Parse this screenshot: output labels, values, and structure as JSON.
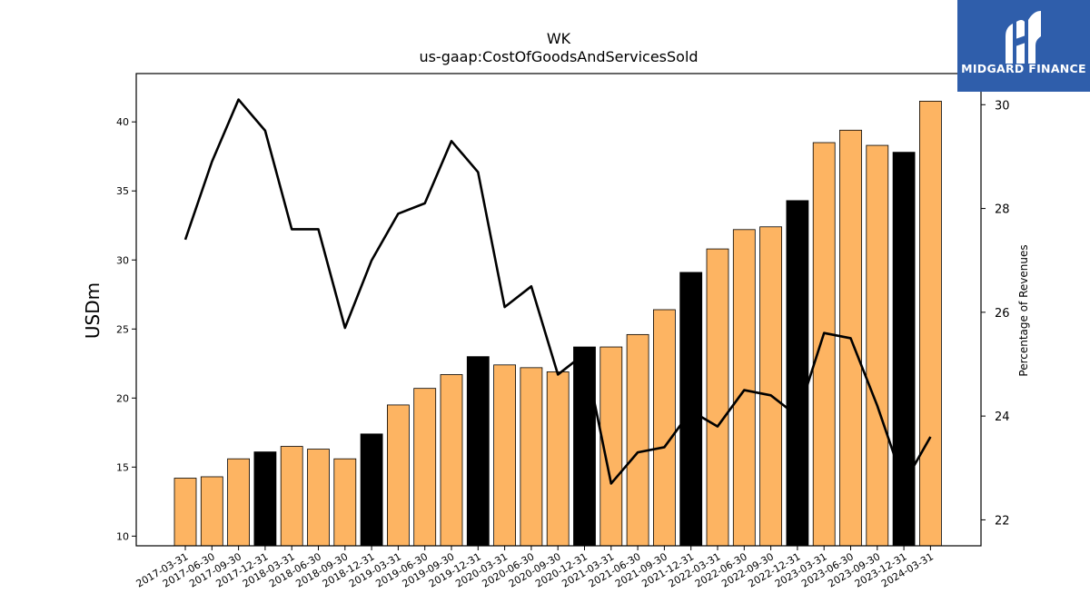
{
  "chart_data": {
    "type": "bar",
    "title": "WK",
    "subtitle": "us-gaap:CostOfGoodsAndServicesSold",
    "ylabel": "USDm",
    "ylabel_right": "Percentage of Revenues",
    "ylim": [
      9.3,
      43.5
    ],
    "ylim_right": [
      21.5,
      30.6
    ],
    "yticks": [
      10,
      15,
      20,
      25,
      30,
      35,
      40
    ],
    "yticks_right": [
      22,
      24,
      26,
      28,
      30
    ],
    "categories": [
      "2017-03-31",
      "2017-06-30",
      "2017-09-30",
      "2017-12-31",
      "2018-03-31",
      "2018-06-30",
      "2018-09-30",
      "2018-12-31",
      "2019-03-31",
      "2019-06-30",
      "2019-09-30",
      "2019-12-31",
      "2020-03-31",
      "2020-06-30",
      "2020-09-30",
      "2020-12-31",
      "2021-03-31",
      "2021-06-30",
      "2021-09-30",
      "2021-12-31",
      "2022-03-31",
      "2022-06-30",
      "2022-09-30",
      "2022-12-31",
      "2023-03-31",
      "2023-06-30",
      "2023-09-30",
      "2023-12-31",
      "2024-03-31"
    ],
    "series": [
      {
        "type": "bar",
        "values": [
          14.2,
          14.3,
          15.6,
          16.1,
          16.5,
          16.3,
          15.6,
          17.4,
          19.5,
          20.7,
          21.7,
          23.0,
          22.4,
          22.2,
          21.9,
          23.7,
          23.7,
          24.6,
          26.4,
          29.1,
          30.8,
          32.2,
          32.4,
          34.3,
          38.5,
          39.4,
          38.3,
          37.8,
          41.5
        ],
        "q4_color": "#000000",
        "color": "#fdb462"
      },
      {
        "type": "line",
        "axis": "right",
        "values": [
          27.4,
          28.9,
          30.1,
          29.5,
          27.6,
          27.6,
          25.7,
          27.0,
          27.9,
          28.1,
          29.3,
          28.7,
          26.1,
          26.5,
          24.8,
          25.2,
          22.7,
          23.3,
          23.4,
          24.1,
          23.8,
          24.5,
          24.4,
          24.0,
          25.6,
          25.5,
          24.2,
          22.7,
          23.6
        ],
        "color": "#000000"
      }
    ],
    "grid": false,
    "legend": "none"
  },
  "logo": {
    "text": "MIDGARD FINANCE",
    "bg_color": "#2f5eab"
  }
}
